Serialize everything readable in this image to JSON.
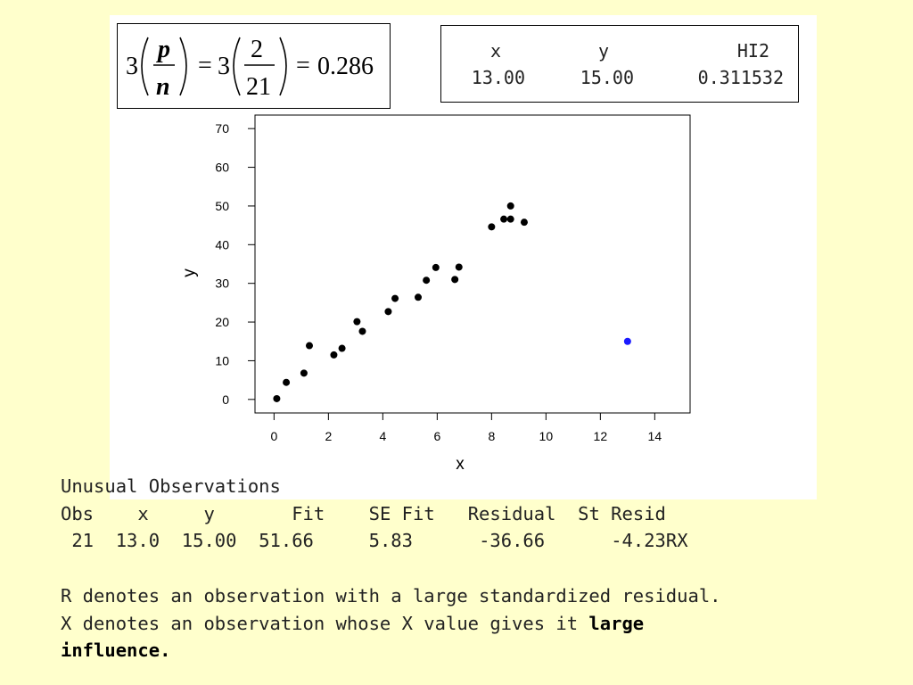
{
  "formula": {
    "coef": "3",
    "num_sym": "p",
    "den_sym": "n",
    "eq1": "=",
    "num_val": "2",
    "den_val": "21",
    "eq2": "=",
    "result": "0.286"
  },
  "hi_table": {
    "headers": [
      "x",
      "y",
      "HI2"
    ],
    "values": [
      "13.00",
      "15.00",
      "0.311532"
    ]
  },
  "chart_data": {
    "type": "scatter",
    "title": "",
    "xlabel": "x",
    "ylabel": "y",
    "xlim": [
      -0.7,
      15.3
    ],
    "ylim": [
      -3.5,
      73.5
    ],
    "xticks": [
      0,
      2,
      4,
      6,
      8,
      10,
      12,
      14
    ],
    "yticks": [
      0,
      10,
      20,
      30,
      40,
      50,
      60,
      70
    ],
    "grid": false,
    "series": [
      {
        "color": "#000000",
        "x": [
          0.1,
          0.45,
          1.1,
          1.3,
          2.2,
          2.5,
          3.05,
          3.25,
          4.2,
          4.45,
          5.3,
          5.6,
          5.95,
          6.65,
          6.8,
          8.0,
          8.45,
          8.7,
          8.7,
          9.2
        ],
        "y": [
          0.2,
          4.4,
          6.8,
          13.9,
          11.5,
          13.2,
          20.1,
          17.6,
          22.7,
          26.1,
          26.4,
          30.8,
          34.1,
          31.0,
          34.2,
          44.6,
          46.6,
          46.6,
          50.0,
          45.8
        ]
      },
      {
        "color": "#1a1aff",
        "x": [
          13.0
        ],
        "y": [
          15.0
        ]
      }
    ]
  },
  "unusual": {
    "title": "Unusual Observations",
    "headers": [
      "Obs",
      "x",
      "y",
      "Fit",
      "SE Fit",
      "Residual",
      "St Resid"
    ],
    "row": [
      "21",
      "13.0",
      "15.00",
      "51.66",
      "5.83",
      "-36.66",
      "-4.23RX"
    ]
  },
  "notes": {
    "r_note": "R denotes an observation with a large standardized residual.",
    "x_note_plain": "X denotes an observation whose X value gives it ",
    "x_note_bold1": "large",
    "x_note_bold2": "influence."
  }
}
